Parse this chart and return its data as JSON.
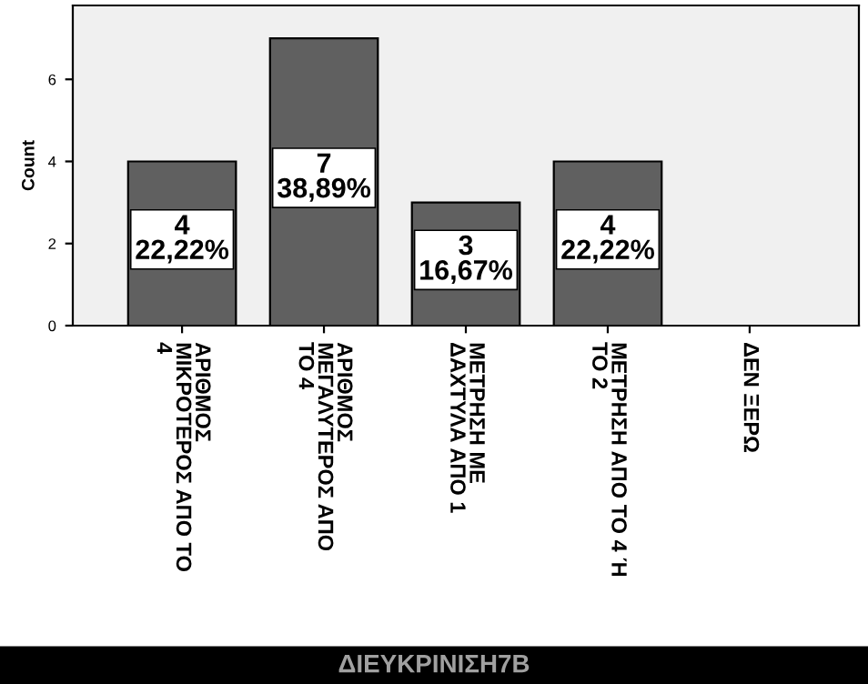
{
  "chart_data": {
    "type": "bar",
    "xlabel": "ΔΙΕΥΚΡΙΝΙΣΗ7Β",
    "ylabel": "Count",
    "categories": [
      "ΑΡΙΘΜΟΣ\nΜΙΚΡΟΤΕΡΟΣ ΑΠΟ ΤΟ\n4",
      "ΑΡΙΘΜΟΣ\nΜΕΓΑΛΥΤΕΡΟΣ ΑΠΟ\nΤΟ 4",
      "ΜΕΤΡΗΣΗ ΜΕ\nΔΑΧΤΥΛΑ ΑΠΟ 1",
      "ΜΕΤΡΗΣΗ ΑΠΟ ΤΟ 4 Ή\nΤΟ 2",
      "ΔΕΝ ΞΕΡΩ"
    ],
    "values": [
      4,
      7,
      3,
      4,
      0
    ],
    "value_labels": [
      "4\n22,22%",
      "7\n38,89%",
      "3\n16,67%",
      "4\n22,22%",
      null
    ],
    "color": "#606060",
    "ylim": [
      0,
      7.8
    ],
    "yticks": [
      0,
      2,
      4,
      6
    ],
    "grid": false,
    "legend": false
  }
}
